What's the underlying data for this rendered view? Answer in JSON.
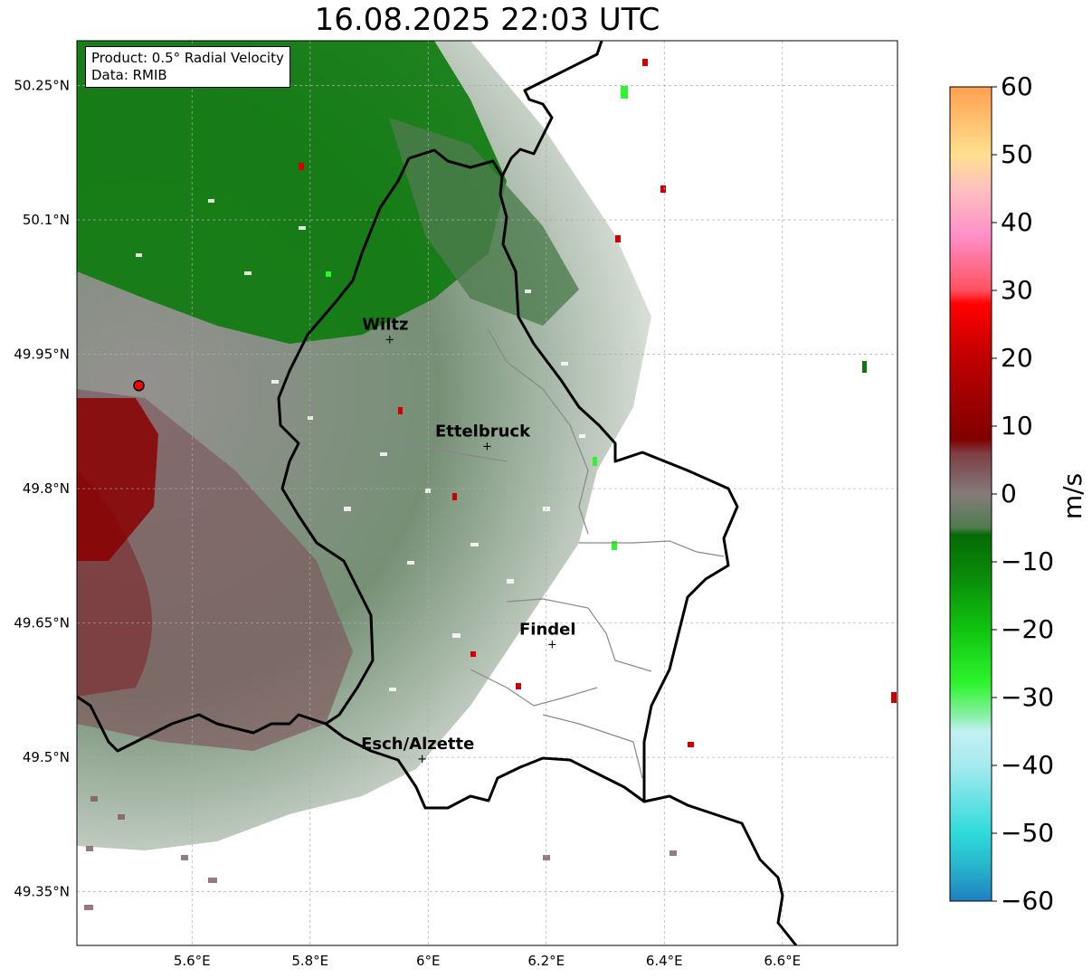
{
  "title": "16.08.2025 22:03 UTC",
  "info": {
    "product_line": "Product: 0.5° Radial Velocity",
    "data_line": "Data: RMIB"
  },
  "map": {
    "lon_range": [
      5.405,
      6.795
    ],
    "lat_range": [
      49.29,
      50.3
    ],
    "x_ticks": [
      {
        "value": 5.6,
        "label": "5.6°E"
      },
      {
        "value": 5.8,
        "label": "5.8°E"
      },
      {
        "value": 6.0,
        "label": "6°E"
      },
      {
        "value": 6.2,
        "label": "6.2°E"
      },
      {
        "value": 6.4,
        "label": "6.4°E"
      },
      {
        "value": 6.6,
        "label": "6.6°E"
      }
    ],
    "y_ticks": [
      {
        "value": 50.25,
        "label": "50.25°N"
      },
      {
        "value": 50.1,
        "label": "50.1°N"
      },
      {
        "value": 49.95,
        "label": "49.95°N"
      },
      {
        "value": 49.8,
        "label": "49.8°N"
      },
      {
        "value": 49.65,
        "label": "49.65°N"
      },
      {
        "value": 49.5,
        "label": "49.5°N"
      },
      {
        "value": 49.35,
        "label": "49.35°N"
      }
    ],
    "grid": true,
    "radar_site": {
      "lon": 5.51,
      "lat": 49.915
    },
    "cities": [
      {
        "name": "Wiltz",
        "lon": 5.935,
        "lat": 49.967
      },
      {
        "name": "Ettelbruck",
        "lon": 6.1,
        "lat": 49.848
      },
      {
        "name": "Findel",
        "lon": 6.21,
        "lat": 49.627
      },
      {
        "name": "Esch/Alzette",
        "lon": 5.99,
        "lat": 49.499
      }
    ]
  },
  "colorbar": {
    "unit": "m/s",
    "range": [
      -60,
      60
    ],
    "ticks": [
      {
        "value": 60,
        "label": "60"
      },
      {
        "value": 50,
        "label": "50"
      },
      {
        "value": 40,
        "label": "40"
      },
      {
        "value": 30,
        "label": "30"
      },
      {
        "value": 20,
        "label": "20"
      },
      {
        "value": 10,
        "label": "10"
      },
      {
        "value": 0,
        "label": "0"
      },
      {
        "value": -10,
        "label": "−10"
      },
      {
        "value": -20,
        "label": "−20"
      },
      {
        "value": -30,
        "label": "−30"
      },
      {
        "value": -40,
        "label": "−40"
      },
      {
        "value": -50,
        "label": "−50"
      },
      {
        "value": -60,
        "label": "−60"
      }
    ],
    "color_stops": [
      {
        "value": -60,
        "color": "#1f7fc0"
      },
      {
        "value": -55,
        "color": "#27b4cc"
      },
      {
        "value": -50,
        "color": "#2edbdb"
      },
      {
        "value": -40,
        "color": "#a6eaef"
      },
      {
        "value": -35,
        "color": "#c4f0f2"
      },
      {
        "value": -33,
        "color": "#8ff0b0"
      },
      {
        "value": -28,
        "color": "#2ef52e"
      },
      {
        "value": -20,
        "color": "#10c410"
      },
      {
        "value": -12,
        "color": "#0a8a0a"
      },
      {
        "value": -6,
        "color": "#056a05"
      },
      {
        "value": -5,
        "color": "#4e7c4e"
      },
      {
        "value": 0,
        "color": "#857b7b"
      },
      {
        "value": 6,
        "color": "#7d3f44"
      },
      {
        "value": 8,
        "color": "#800000"
      },
      {
        "value": 20,
        "color": "#c00000"
      },
      {
        "value": 28,
        "color": "#ff0000"
      },
      {
        "value": 30,
        "color": "#ff5060"
      },
      {
        "value": 38,
        "color": "#ff8fc8"
      },
      {
        "value": 45,
        "color": "#ffc0c0"
      },
      {
        "value": 50,
        "color": "#ffe090"
      },
      {
        "value": 60,
        "color": "#ffa050"
      }
    ]
  }
}
